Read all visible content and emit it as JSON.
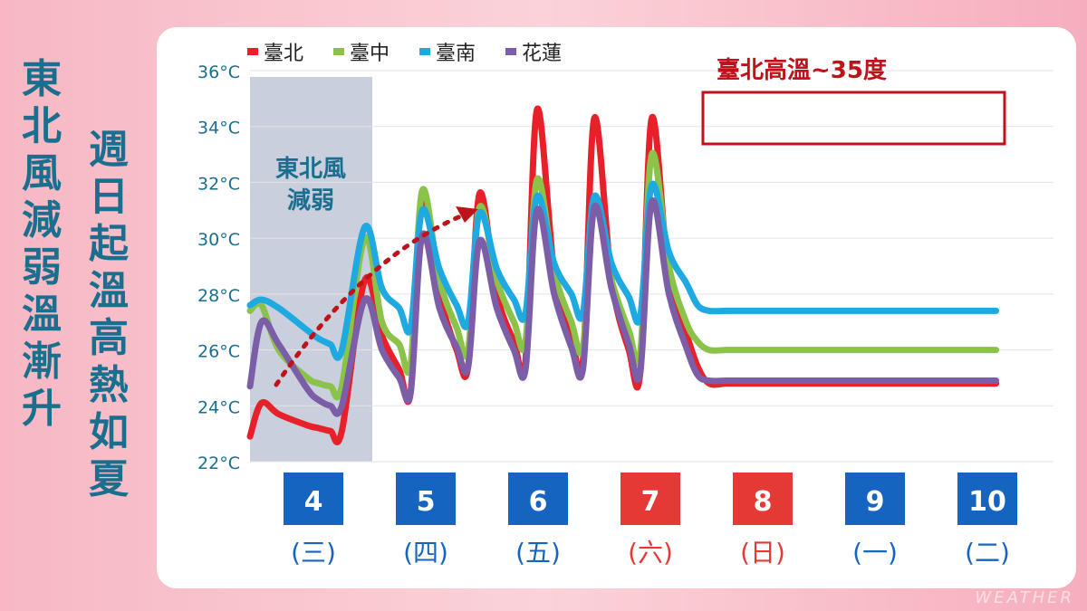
{
  "side_left": "東北風減弱溫漸升",
  "side_right": "週日起溫高熱如夏",
  "watermark": "WEATHER",
  "shade_label_1": "東北風",
  "shade_label_2": "減弱",
  "callout": "臺北高溫~35度",
  "chart_data": {
    "type": "line",
    "y_ticks": [
      "36°C",
      "34°C",
      "32°C",
      "30°C",
      "28°C",
      "26°C",
      "24°C",
      "22°C"
    ],
    "ylim": [
      22,
      36
    ],
    "legend_position": "top-left",
    "days": [
      {
        "date": "4",
        "weekday": "(三)",
        "color": "#1565c0"
      },
      {
        "date": "5",
        "weekday": "(四)",
        "color": "#1565c0"
      },
      {
        "date": "6",
        "weekday": "(五)",
        "color": "#1565c0"
      },
      {
        "date": "7",
        "weekday": "(六)",
        "color": "#e53935"
      },
      {
        "date": "8",
        "weekday": "(日)",
        "color": "#e53935"
      },
      {
        "date": "9",
        "weekday": "(一)",
        "color": "#1565c0"
      },
      {
        "date": "10",
        "weekday": "(二)",
        "color": "#1565c0"
      }
    ],
    "x": [
      0.0,
      0.2,
      0.5,
      1.0,
      1.2,
      1.4,
      1.6,
      2.0,
      2.3,
      2.6,
      2.8,
      3.0,
      3.3,
      3.6,
      3.8,
      4.0,
      4.3,
      4.6,
      4.8,
      5.0,
      5.3,
      5.6,
      5.8,
      6.0,
      6.3,
      6.6,
      6.8,
      7.0,
      7.3,
      7.6,
      7.8,
      8.0,
      8.3,
      8.6,
      8.8,
      9.0,
      9.3,
      9.6,
      9.8,
      10.0,
      10.3,
      10.6,
      10.8,
      11.0,
      11.3,
      11.6,
      11.8,
      12.0,
      12.3,
      12.6,
      12.8,
      13.0,
      13.3,
      13.6,
      13.8,
      14.0
    ],
    "series": [
      {
        "name": "臺北",
        "color": "#e8202a",
        "values": [
          22.9,
          24.1,
          23.7,
          23.3,
          23.2,
          23.1,
          23.1,
          28.5,
          26.5,
          25.3,
          24.5,
          31.5,
          28.0,
          26.0,
          25.4,
          31.6,
          28.0,
          26.3,
          25.6,
          34.6,
          28.8,
          26.5,
          25.6,
          34.3,
          28.5,
          26.0,
          25.2,
          34.3,
          28.5,
          26.6,
          25.4,
          24.8,
          24.8,
          24.8,
          24.8,
          24.8,
          24.8,
          24.8,
          24.8,
          24.8,
          24.8,
          24.8,
          24.8,
          24.8,
          24.8,
          24.8,
          24.8,
          24.8,
          24.8,
          24.8,
          24.8,
          24.8,
          24.8,
          24.8,
          24.8,
          24.8
        ]
      },
      {
        "name": "臺中",
        "color": "#8bc34a",
        "values": [
          27.4,
          27.6,
          26.0,
          25.0,
          24.8,
          24.7,
          24.7,
          30.0,
          27.0,
          26.2,
          25.5,
          31.7,
          28.5,
          26.8,
          26.0,
          31.1,
          28.5,
          27.0,
          26.3,
          32.1,
          28.8,
          27.0,
          26.1,
          31.2,
          28.5,
          26.7,
          25.9,
          33.0,
          29.0,
          27.0,
          26.3,
          26.0,
          26.0,
          26.0,
          26.0,
          26.0,
          26.0,
          26.0,
          26.0,
          26.0,
          26.0,
          26.0,
          26.0,
          26.0,
          26.0,
          26.0,
          26.0,
          26.0,
          26.0,
          26.0,
          26.0,
          26.0,
          26.0,
          26.0,
          26.0,
          26.0
        ]
      },
      {
        "name": "臺南",
        "color": "#1fa9e1",
        "values": [
          27.6,
          27.8,
          27.5,
          26.7,
          26.4,
          26.2,
          26.0,
          30.4,
          28.2,
          27.5,
          26.8,
          31.0,
          28.9,
          27.6,
          27.0,
          30.9,
          28.9,
          27.8,
          27.3,
          31.5,
          29.1,
          28.0,
          27.3,
          31.5,
          29.1,
          27.9,
          27.2,
          31.9,
          29.5,
          28.4,
          27.6,
          27.4,
          27.4,
          27.4,
          27.4,
          27.4,
          27.4,
          27.4,
          27.4,
          27.4,
          27.4,
          27.4,
          27.4,
          27.4,
          27.4,
          27.4,
          27.4,
          27.4,
          27.4,
          27.4,
          27.4,
          27.4,
          27.4,
          27.4,
          27.4,
          27.4
        ]
      },
      {
        "name": "花蓮",
        "color": "#7b5ea7",
        "values": [
          24.7,
          27.0,
          26.2,
          24.6,
          24.2,
          24.0,
          24.0,
          27.8,
          26.0,
          25.0,
          24.5,
          30.1,
          27.5,
          26.1,
          25.4,
          29.9,
          27.5,
          26.0,
          25.3,
          31.0,
          28.0,
          26.1,
          25.3,
          31.1,
          28.2,
          26.2,
          25.2,
          31.3,
          28.0,
          26.1,
          25.1,
          24.9,
          24.9,
          24.9,
          24.9,
          24.9,
          24.9,
          24.9,
          24.9,
          24.9,
          24.9,
          24.9,
          24.9,
          24.9,
          24.9,
          24.9,
          24.9,
          24.9,
          24.9,
          24.9,
          24.9,
          24.9,
          24.9,
          24.9,
          24.9,
          24.9
        ]
      }
    ]
  }
}
